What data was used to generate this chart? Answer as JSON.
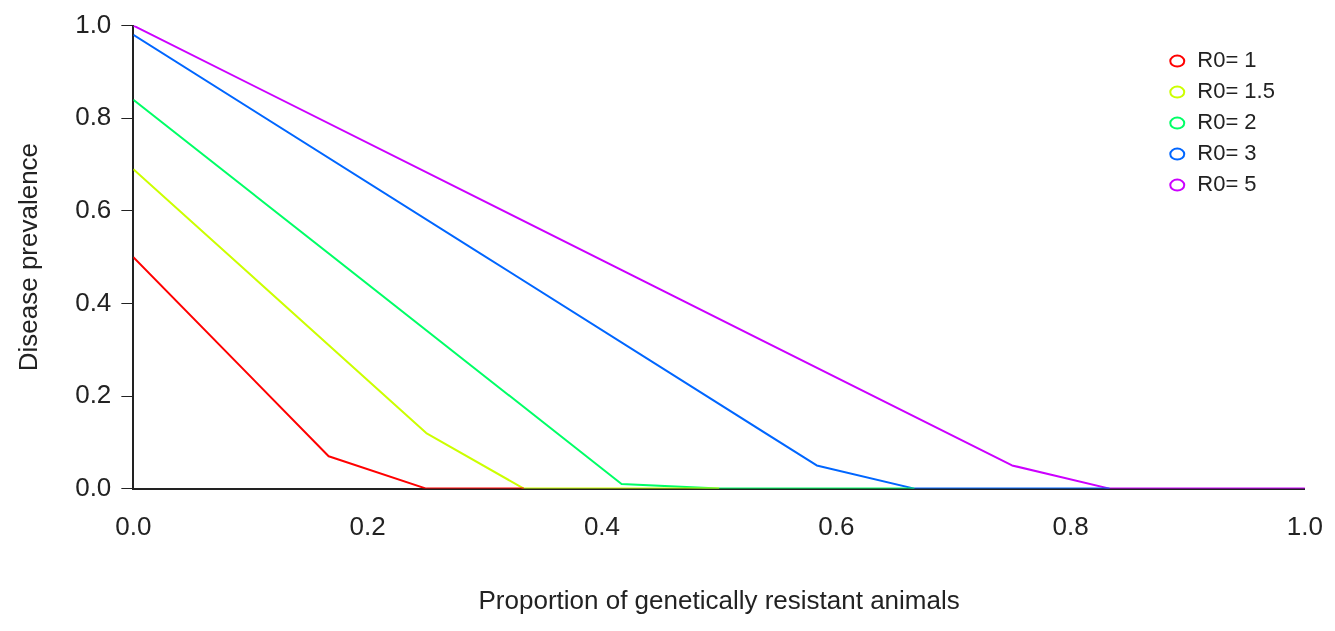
{
  "chart_data": {
    "type": "line",
    "xlabel": "Proportion of genetically resistant animals",
    "ylabel": "Disease prevalence",
    "xlim": [
      0,
      1
    ],
    "xticks": [
      {
        "value": 0,
        "label": "0.0"
      },
      0.2,
      0.4,
      0.6,
      0.8,
      {
        "value": 1,
        "label": "1.0"
      }
    ],
    "ylim": [
      0,
      1
    ],
    "yticks": [
      {
        "value": 0,
        "label": "0.0"
      },
      0.2,
      0.4,
      0.6,
      0.8,
      {
        "value": 1,
        "label": "1.0"
      }
    ],
    "legend": "top right",
    "series": [
      {
        "name": "R0= 1",
        "color": "#ff0000",
        "x": [
          0,
          0.1667,
          0.25,
          0.3333
        ],
        "values": [
          0.5,
          0.07,
          0,
          0
        ]
      },
      {
        "name": "R0= 1.5",
        "color": "#ccff00",
        "x": [
          0,
          0.25,
          0.3333,
          0.5
        ],
        "values": [
          0.69,
          0.12,
          0,
          0
        ]
      },
      {
        "name": "R0= 2",
        "color": "#00ff66",
        "x": [
          0,
          0.4167,
          0.5,
          0.6667
        ],
        "values": [
          0.84,
          0.01,
          0,
          0
        ]
      },
      {
        "name": "R0= 3",
        "color": "#0066ff",
        "x": [
          0,
          0.5833,
          0.6667,
          0.8333
        ],
        "values": [
          0.98,
          0.05,
          0,
          0
        ]
      },
      {
        "name": "R0= 5",
        "color": "#cc00ff",
        "x": [
          0,
          0.75,
          0.8333,
          1
        ],
        "values": [
          1,
          0.05,
          0,
          0
        ]
      }
    ]
  }
}
